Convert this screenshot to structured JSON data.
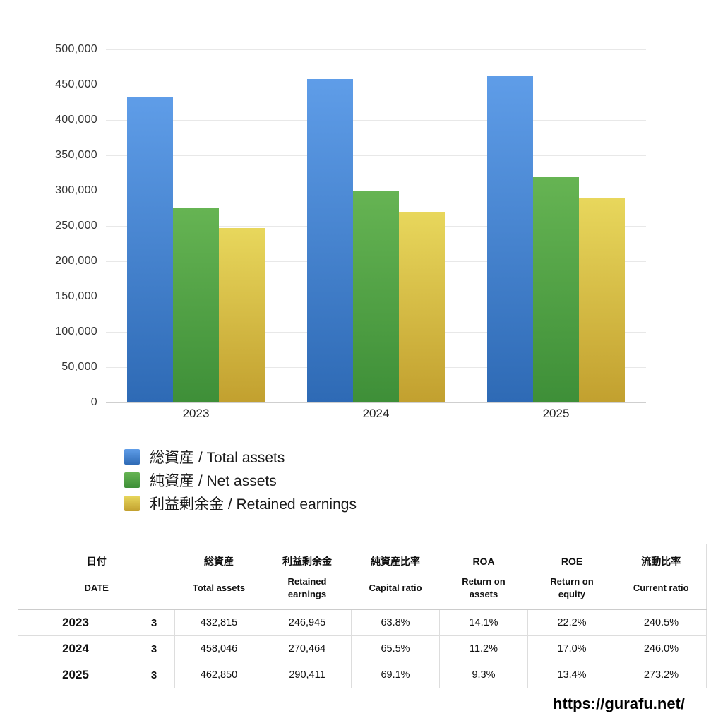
{
  "chart_data": {
    "type": "bar",
    "title": "",
    "categories": [
      "2023",
      "2024",
      "2025"
    ],
    "series": [
      {
        "name": "総資産 / Total assets",
        "color_top": "#5f9de8",
        "color_bottom": "#2e6ab5",
        "values": [
          432815,
          458046,
          462850
        ]
      },
      {
        "name": "純資産 / Net assets",
        "color_top": "#66b453",
        "color_bottom": "#3e8f38",
        "values": [
          276136,
          300020,
          319830
        ]
      },
      {
        "name": "利益剰余金 / Retained earnings",
        "color_top": "#e8d75c",
        "color_bottom": "#c2a02f",
        "values": [
          246945,
          270464,
          290411
        ]
      }
    ],
    "ylim": [
      0,
      500000
    ],
    "yticks": [
      "0",
      "50,000",
      "100,000",
      "150,000",
      "200,000",
      "250,000",
      "300,000",
      "350,000",
      "400,000",
      "450,000",
      "500,000"
    ],
    "grid": true,
    "legend_position": "bottom-left"
  },
  "table": {
    "headers_jp": [
      "日付",
      "総資産",
      "利益剰余金",
      "純資産比率",
      "ROA",
      "ROE",
      "流動比率"
    ],
    "headers_en": [
      "DATE",
      "Total assets",
      "Retained\nearnings",
      "Capital ratio",
      "Return on\nassets",
      "Return on\nequity",
      "Current ratio"
    ],
    "rows": [
      {
        "year": "2023",
        "month": "3",
        "total_assets": "432,815",
        "retained_earnings": "246,945",
        "capital_ratio": "63.8%",
        "roa": "14.1%",
        "roe": "22.2%",
        "current_ratio": "240.5%"
      },
      {
        "year": "2024",
        "month": "3",
        "total_assets": "458,046",
        "retained_earnings": "270,464",
        "capital_ratio": "65.5%",
        "roa": "11.2%",
        "roe": "17.0%",
        "current_ratio": "246.0%"
      },
      {
        "year": "2025",
        "month": "3",
        "total_assets": "462,850",
        "retained_earnings": "290,411",
        "capital_ratio": "69.1%",
        "roa": "9.3%",
        "roe": "13.4%",
        "current_ratio": "273.2%"
      }
    ]
  },
  "footer": {
    "url": "https://gurafu.net/"
  }
}
